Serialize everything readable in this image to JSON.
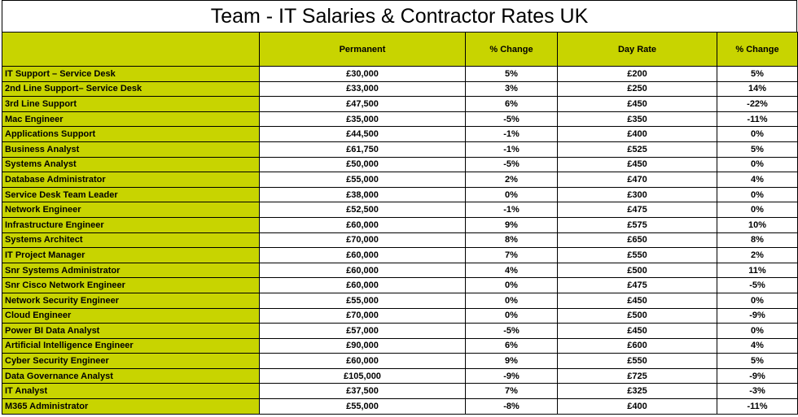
{
  "title": "Team - IT Salaries & Contractor Rates UK",
  "colors": {
    "header_fill": "#c8d400",
    "border": "#000000"
  },
  "columns": [
    "",
    "Permanent",
    "% Change",
    "Day Rate",
    "% Change"
  ],
  "rows": [
    [
      "IT Support – Service Desk",
      "£30,000",
      "5%",
      "£200",
      "5%"
    ],
    [
      "2nd Line Support– Service Desk",
      "£33,000",
      "3%",
      "£250",
      "14%"
    ],
    [
      "3rd Line Support",
      "£47,500",
      "6%",
      "£450",
      "-22%"
    ],
    [
      "Mac Engineer",
      "£35,000",
      "-5%",
      "£350",
      "-11%"
    ],
    [
      "Applications Support",
      "£44,500",
      "-1%",
      "£400",
      "0%"
    ],
    [
      "Business Analyst",
      "£61,750",
      "-1%",
      "£525",
      "5%"
    ],
    [
      "Systems Analyst",
      "£50,000",
      "-5%",
      "£450",
      "0%"
    ],
    [
      "Database Administrator",
      "£55,000",
      "2%",
      "£470",
      "4%"
    ],
    [
      "Service Desk Team Leader",
      "£38,000",
      "0%",
      "£300",
      "0%"
    ],
    [
      "Network Engineer",
      "£52,500",
      "-1%",
      "£475",
      "0%"
    ],
    [
      "Infrastructure Engineer",
      "£60,000",
      "9%",
      "£575",
      "10%"
    ],
    [
      "Systems Architect",
      "£70,000",
      "8%",
      "£650",
      "8%"
    ],
    [
      "IT Project Manager",
      "£60,000",
      "7%",
      "£550",
      "2%"
    ],
    [
      "Snr Systems Administrator",
      "£60,000",
      "4%",
      "£500",
      "11%"
    ],
    [
      "Snr Cisco Network Engineer",
      "£60,000",
      "0%",
      "£475",
      "-5%"
    ],
    [
      "Network Security Engineer",
      "£55,000",
      "0%",
      "£450",
      "0%"
    ],
    [
      "Cloud Engineer",
      "£70,000",
      "0%",
      "£500",
      "-9%"
    ],
    [
      "Power BI Data Analyst",
      "£57,000",
      "-5%",
      "£450",
      "0%"
    ],
    [
      "Artificial Intelligence Engineer",
      "£90,000",
      "6%",
      "£600",
      "4%"
    ],
    [
      "Cyber Security Engineer",
      "£60,000",
      "9%",
      "£550",
      "5%"
    ],
    [
      "Data Governance Analyst",
      "£105,000",
      "-9%",
      "£725",
      "-9%"
    ],
    [
      "IT Analyst",
      "£37,500",
      "7%",
      "£325",
      "-3%"
    ],
    [
      "M365 Administrator",
      "£55,000",
      "-8%",
      "£400",
      "-11%"
    ]
  ]
}
